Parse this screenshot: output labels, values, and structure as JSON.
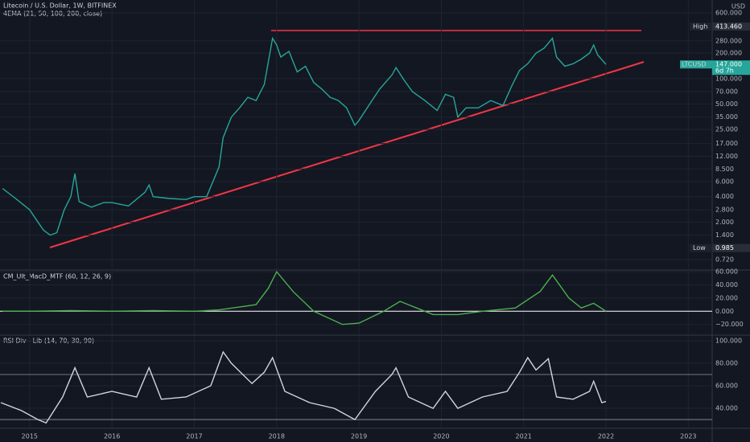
{
  "chart_data": [
    {
      "type": "line",
      "title": "Litecoin / U.S. Dollar, 1W, BITFINEX",
      "subtitle": "4EMA (21, 50, 100, 200, close)",
      "y_label": "USD",
      "log_scale": true,
      "grid": true,
      "color": "#26a69a",
      "xlim": [
        2014.64,
        2023.29
      ],
      "ylim": [
        0.553,
        852
      ],
      "yticks": [
        {
          "value": 600,
          "label": "600.000"
        },
        {
          "value": 280,
          "label": "280.000"
        },
        {
          "value": 200,
          "label": "200.000"
        },
        {
          "value": 100,
          "label": "100.000"
        },
        {
          "value": 70,
          "label": "70.000"
        },
        {
          "value": 50,
          "label": "50.000"
        },
        {
          "value": 35,
          "label": "35.000"
        },
        {
          "value": 25,
          "label": "25.000"
        },
        {
          "value": 17,
          "label": "17.000"
        },
        {
          "value": 12,
          "label": "12.000"
        },
        {
          "value": 8.5,
          "label": "8.500"
        },
        {
          "value": 6,
          "label": "6.000"
        },
        {
          "value": 4,
          "label": "4.000"
        },
        {
          "value": 2.8,
          "label": "2.800"
        },
        {
          "value": 2,
          "label": "2.000"
        },
        {
          "value": 1.4,
          "label": "1.400"
        },
        {
          "value": 0.72,
          "label": "0.720"
        }
      ],
      "x": [
        2014.67,
        2014.83,
        2015.0,
        2015.1,
        2015.17,
        2015.25,
        2015.33,
        2015.42,
        2015.5,
        2015.55,
        2015.6,
        2015.75,
        2015.9,
        2016.0,
        2016.2,
        2016.4,
        2016.45,
        2016.5,
        2016.7,
        2016.9,
        2017.0,
        2017.15,
        2017.3,
        2017.35,
        2017.45,
        2017.55,
        2017.65,
        2017.75,
        2017.85,
        2017.95,
        2018.0,
        2018.05,
        2018.15,
        2018.25,
        2018.35,
        2018.45,
        2018.55,
        2018.65,
        2018.75,
        2018.85,
        2018.95,
        2019.0,
        2019.1,
        2019.25,
        2019.4,
        2019.45,
        2019.55,
        2019.65,
        2019.8,
        2019.95,
        2020.05,
        2020.15,
        2020.2,
        2020.3,
        2020.45,
        2020.6,
        2020.75,
        2020.85,
        2020.95,
        2021.05,
        2021.15,
        2021.25,
        2021.35,
        2021.4,
        2021.5,
        2021.6,
        2021.7,
        2021.8,
        2021.85,
        2021.9,
        2022.0
      ],
      "values": [
        5,
        3.8,
        2.8,
        2.0,
        1.6,
        1.4,
        1.5,
        2.8,
        4.0,
        7.5,
        3.5,
        3.0,
        3.4,
        3.4,
        3.1,
        4.5,
        5.5,
        4.0,
        3.8,
        3.7,
        4.0,
        4.0,
        9,
        20,
        35,
        45,
        60,
        55,
        85,
        300,
        250,
        180,
        210,
        120,
        140,
        90,
        75,
        60,
        55,
        45,
        28,
        32,
        45,
        75,
        110,
        135,
        95,
        70,
        55,
        42,
        65,
        60,
        35,
        45,
        45,
        55,
        48,
        80,
        125,
        150,
        200,
        230,
        300,
        180,
        140,
        150,
        170,
        200,
        250,
        190,
        147
      ],
      "markers": [
        {
          "label": "High",
          "value": 413.46,
          "value_label": "413.460"
        },
        {
          "label": "Low",
          "value": 0.985,
          "value_label": "0.985"
        },
        {
          "label": "LTCUSD",
          "value": 147,
          "value_label": "147.000",
          "countdown": "6d 7h"
        }
      ]
    },
    {
      "type": "line",
      "title": "CM_Ult_MacD_MTF (60, 12, 26, 9)",
      "grid": true,
      "color": "#4caf50",
      "xlim": [
        2014.64,
        2023.29
      ],
      "ylim": [
        -35,
        62.5
      ],
      "yticks": [
        {
          "value": 60,
          "label": "60.000"
        },
        {
          "value": 40,
          "label": "40.000"
        },
        {
          "value": 20,
          "label": "20.000"
        },
        {
          "value": 0,
          "label": "0.000"
        },
        {
          "value": -20,
          "label": "−20.000"
        }
      ],
      "x": [
        2014.67,
        2015.0,
        2015.5,
        2016.0,
        2016.5,
        2017.0,
        2017.3,
        2017.75,
        2017.9,
        2018.0,
        2018.2,
        2018.45,
        2018.8,
        2019.0,
        2019.3,
        2019.5,
        2019.7,
        2019.9,
        2020.2,
        2020.5,
        2020.9,
        2021.2,
        2021.35,
        2021.55,
        2021.7,
        2021.85,
        2022.0
      ],
      "values": [
        0,
        0,
        1,
        0,
        1,
        0,
        2,
        10,
        35,
        60,
        30,
        0,
        -20,
        -18,
        0,
        15,
        5,
        -5,
        -5,
        0,
        5,
        30,
        55,
        20,
        5,
        12,
        0
      ]
    },
    {
      "type": "line",
      "title": "RSI Div - Lib (14, 70, 30, 90)",
      "grid": true,
      "color": "#d1d4dc",
      "bands": [
        70,
        30
      ],
      "xlim": [
        2014.64,
        2023.29
      ],
      "ylim": [
        22.9,
        104.3
      ],
      "yticks": [
        {
          "value": 100,
          "label": "100.000"
        },
        {
          "value": 80,
          "label": "80.000"
        },
        {
          "value": 60,
          "label": "60.000"
        },
        {
          "value": 40,
          "label": "40.000"
        }
      ],
      "xticks": [
        2015,
        2016,
        2017,
        2018,
        2019,
        2020,
        2021,
        2022,
        2023
      ],
      "x": [
        2014.65,
        2014.9,
        2015.1,
        2015.2,
        2015.4,
        2015.55,
        2015.7,
        2016.0,
        2016.3,
        2016.45,
        2016.6,
        2016.9,
        2017.2,
        2017.35,
        2017.45,
        2017.7,
        2017.85,
        2017.95,
        2018.1,
        2018.4,
        2018.7,
        2018.95,
        2019.2,
        2019.4,
        2019.45,
        2019.6,
        2019.9,
        2020.05,
        2020.2,
        2020.5,
        2020.8,
        2020.95,
        2021.05,
        2021.15,
        2021.3,
        2021.4,
        2021.6,
        2021.8,
        2021.85,
        2021.95,
        2022.0
      ],
      "values": [
        45,
        38,
        30,
        27,
        50,
        76,
        50,
        55,
        50,
        76,
        48,
        50,
        60,
        90,
        80,
        62,
        72,
        85,
        55,
        45,
        40,
        30,
        55,
        70,
        76,
        50,
        40,
        55,
        40,
        50,
        55,
        72,
        85,
        74,
        84,
        50,
        48,
        55,
        64,
        45,
        46
      ]
    }
  ]
}
